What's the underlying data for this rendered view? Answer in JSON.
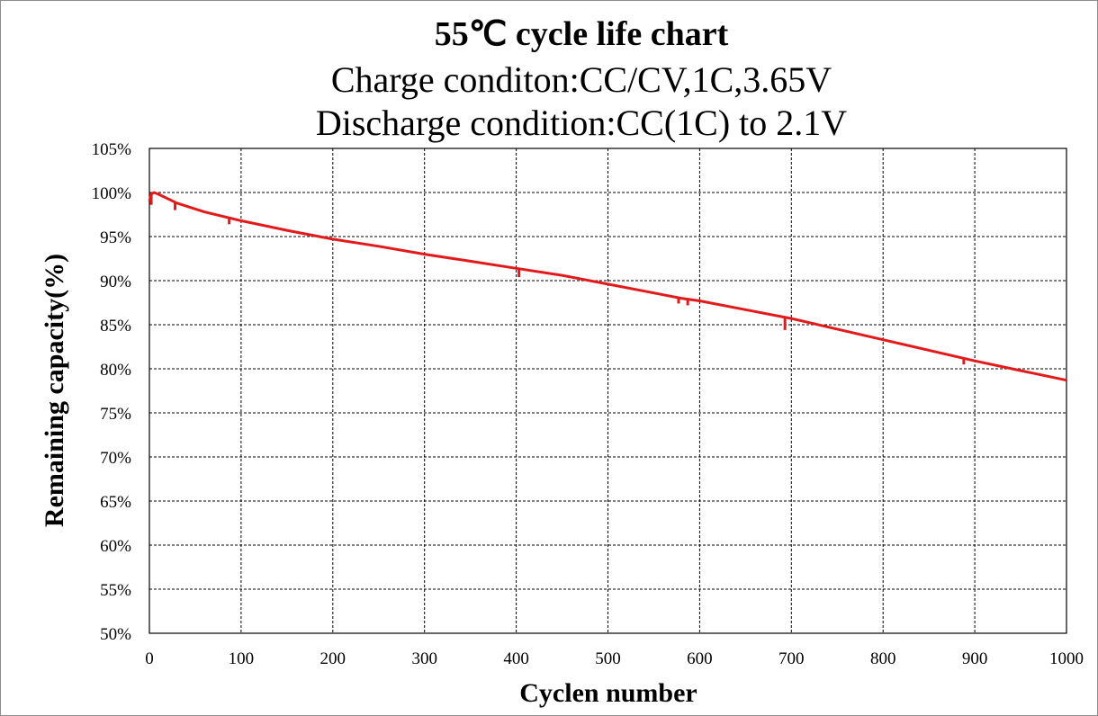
{
  "chart_data": {
    "type": "line",
    "title": "55℃ cycle life chart",
    "subtitle_lines": [
      "Charge conditon:CC/CV,1C,3.65V",
      "Discharge condition:CC(1C) to 2.1V"
    ],
    "xlabel": "Cyclen number",
    "ylabel": "Remaining capacity(%)",
    "xlim": [
      0,
      1000
    ],
    "ylim": [
      50,
      105
    ],
    "x_ticks": [
      0,
      100,
      200,
      300,
      400,
      500,
      600,
      700,
      800,
      900,
      1000
    ],
    "y_ticks": [
      "105%",
      "100%",
      "95%",
      "90%",
      "85%",
      "80%",
      "75%",
      "70%",
      "65%",
      "60%",
      "55%",
      "50%"
    ],
    "grid": true,
    "legend": "none",
    "series": [
      {
        "color": "#e31a1c",
        "x": [
          0,
          2,
          5,
          10,
          30,
          60,
          100,
          150,
          200,
          250,
          300,
          350,
          400,
          450,
          500,
          550,
          580,
          600,
          650,
          700,
          750,
          800,
          850,
          900,
          950,
          1000
        ],
        "y": [
          99.0,
          99.8,
          100.0,
          99.8,
          98.8,
          97.8,
          96.8,
          95.7,
          94.7,
          93.9,
          93.0,
          92.2,
          91.4,
          90.6,
          89.6,
          88.6,
          88.0,
          87.7,
          86.7,
          85.7,
          84.5,
          83.3,
          82.1,
          80.9,
          79.8,
          78.7
        ]
      }
    ],
    "dips": [
      {
        "x": 2,
        "y": 98.6
      },
      {
        "x": 28,
        "y": 98.0
      },
      {
        "x": 87,
        "y": 96.4
      },
      {
        "x": 403,
        "y": 90.4
      },
      {
        "x": 577,
        "y": 87.4
      },
      {
        "x": 587,
        "y": 87.2
      },
      {
        "x": 693,
        "y": 84.4
      },
      {
        "x": 888,
        "y": 80.5
      }
    ]
  }
}
